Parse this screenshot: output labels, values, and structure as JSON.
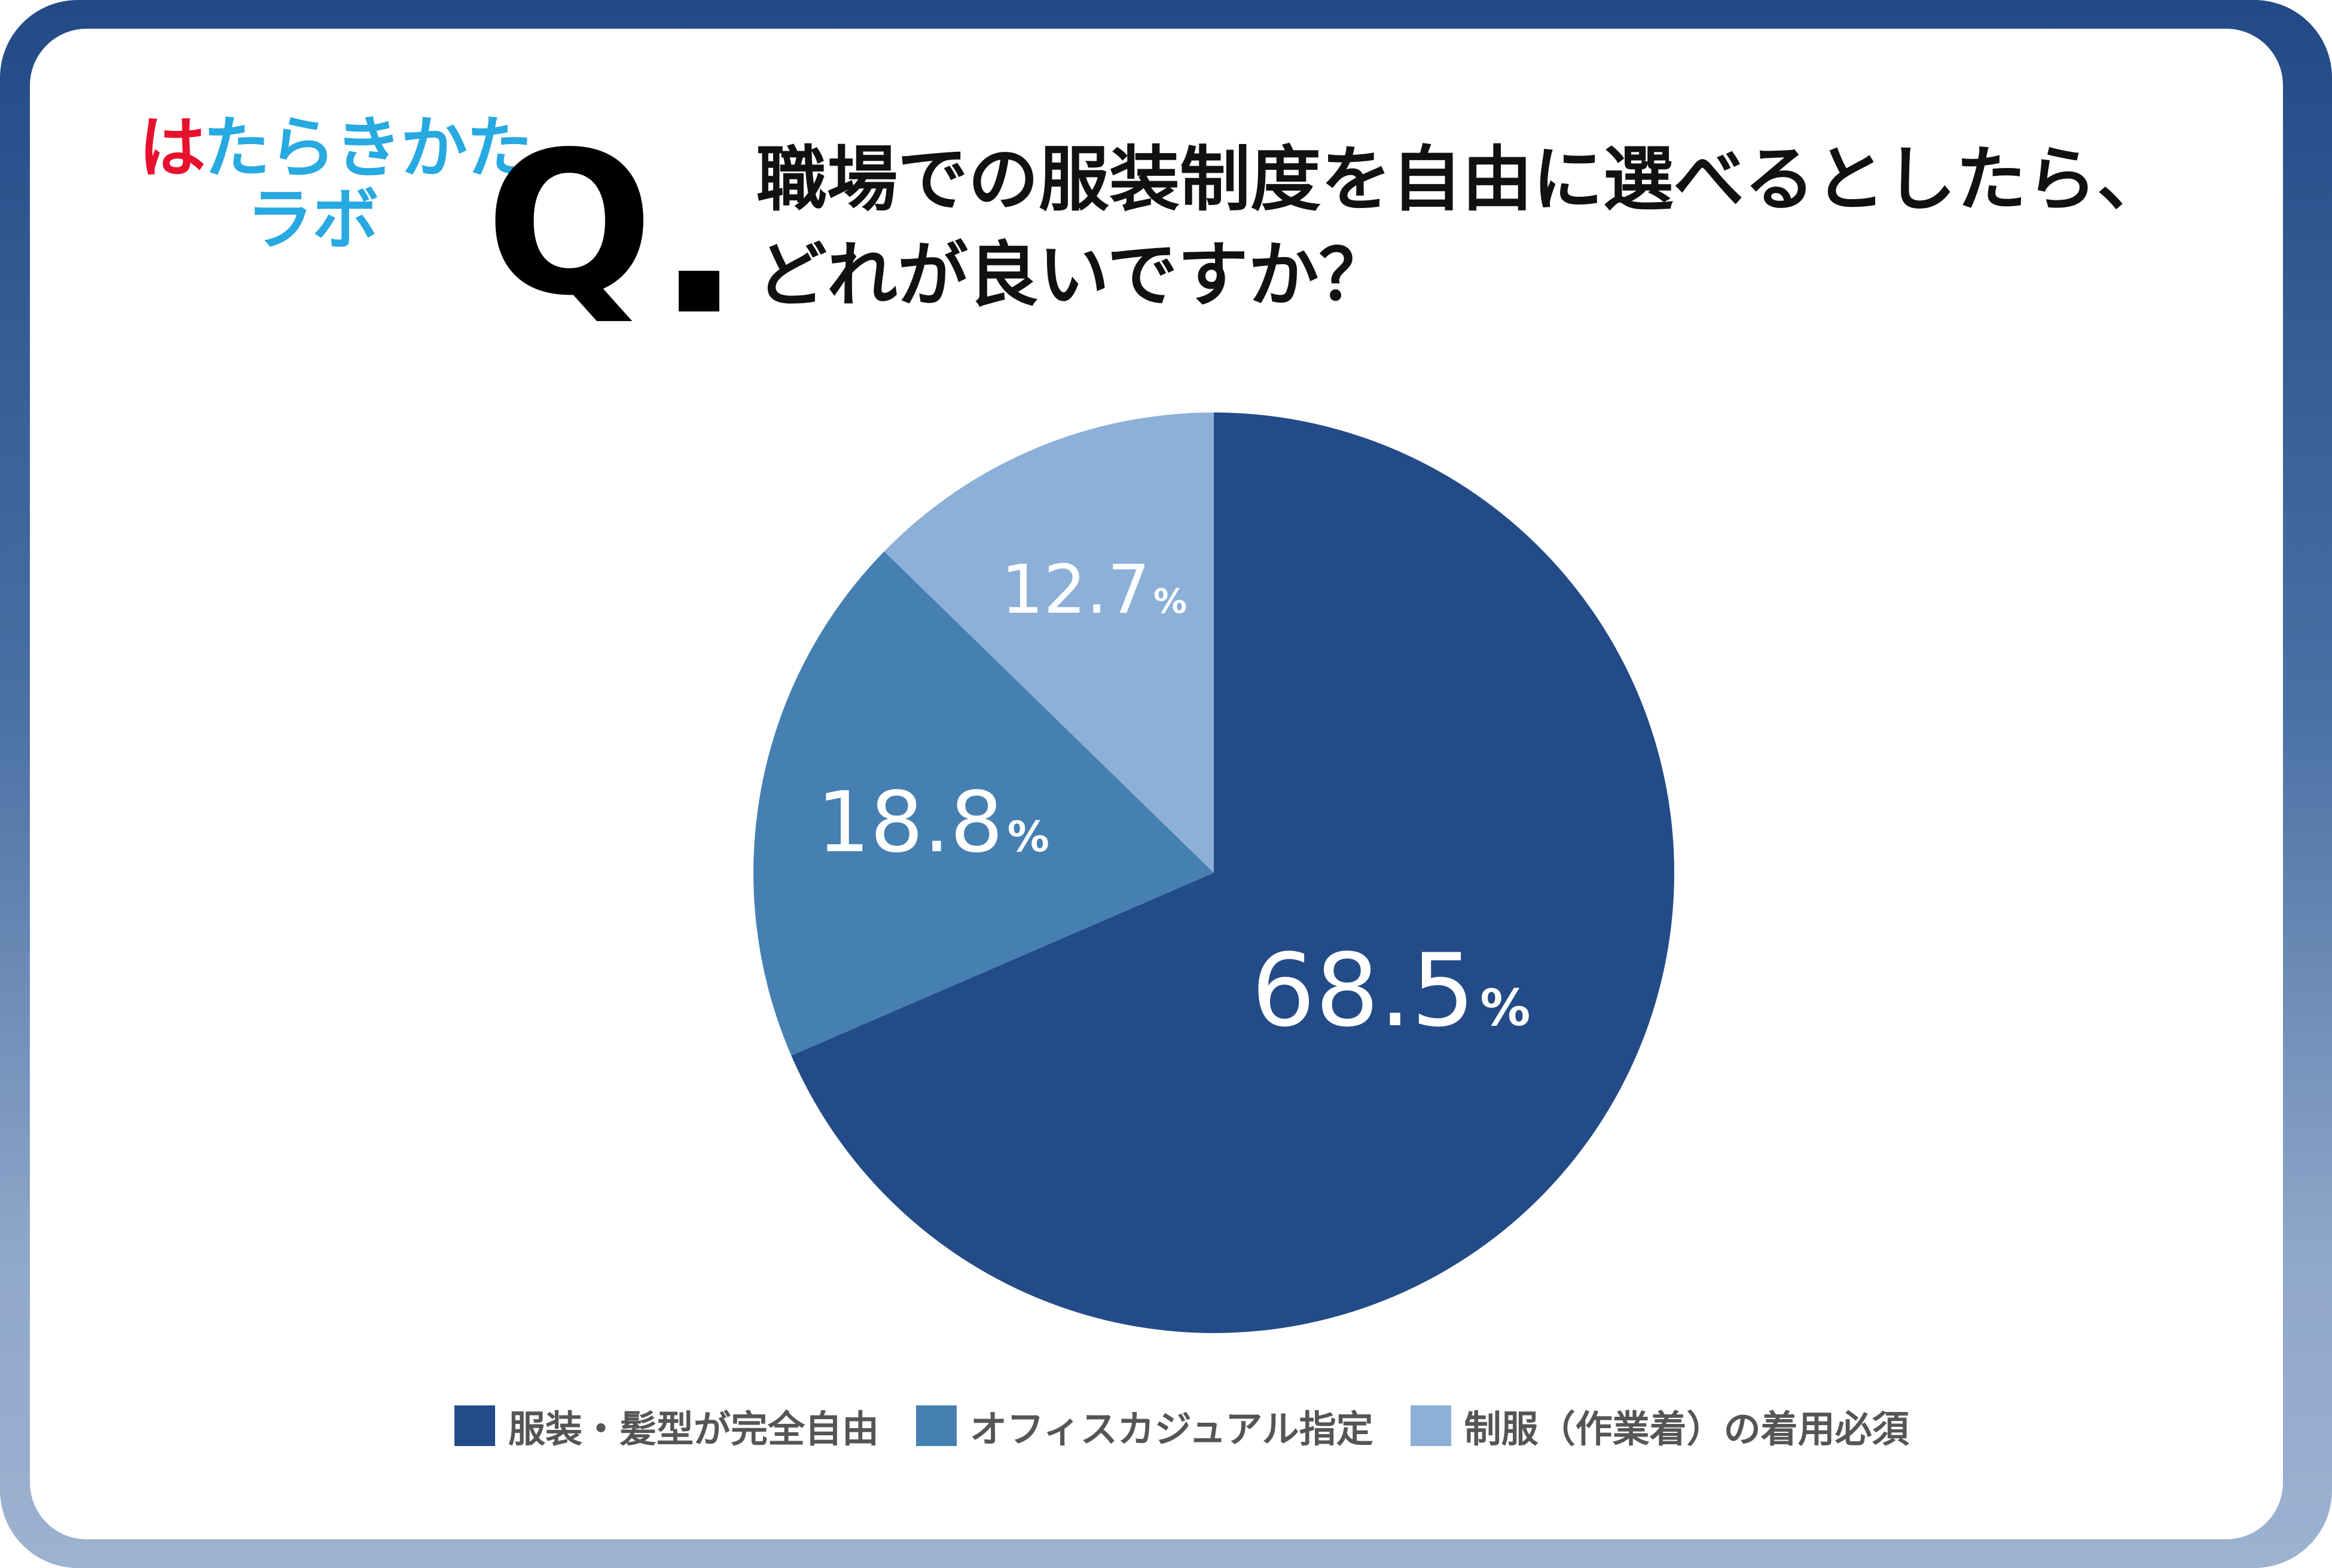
{
  "logo": {
    "line1_a": "は",
    "line1_b": "たらきかた",
    "line2": "ラボ"
  },
  "question": {
    "mark": "Q",
    "line1": "職場での服装制度を自由に選べるとしたら、",
    "line2": "どれが良いですか？"
  },
  "colors": {
    "series1": "#234b87",
    "series2": "#4680b2",
    "series3": "#8cb0d8",
    "logo_red": "#e8112d",
    "logo_blue": "#27a9e1"
  },
  "chart_data": {
    "type": "pie",
    "start": "12 o'clock, clockwise",
    "slices": [
      {
        "label": "服装・髪型が完全自由",
        "value": 68.5,
        "display": "68.5",
        "unit": "%"
      },
      {
        "label": "オフィスカジュアル指定",
        "value": 18.8,
        "display": "18.8",
        "unit": "%"
      },
      {
        "label": "制服（作業着）の着用必須",
        "value": 12.7,
        "display": "12.7",
        "unit": "%"
      }
    ],
    "legend_position": "bottom"
  },
  "legend": [
    {
      "label": "服装・髪型が完全自由"
    },
    {
      "label": "オフィスカジュアル指定"
    },
    {
      "label": "制服（作業着）の着用必須"
    }
  ]
}
